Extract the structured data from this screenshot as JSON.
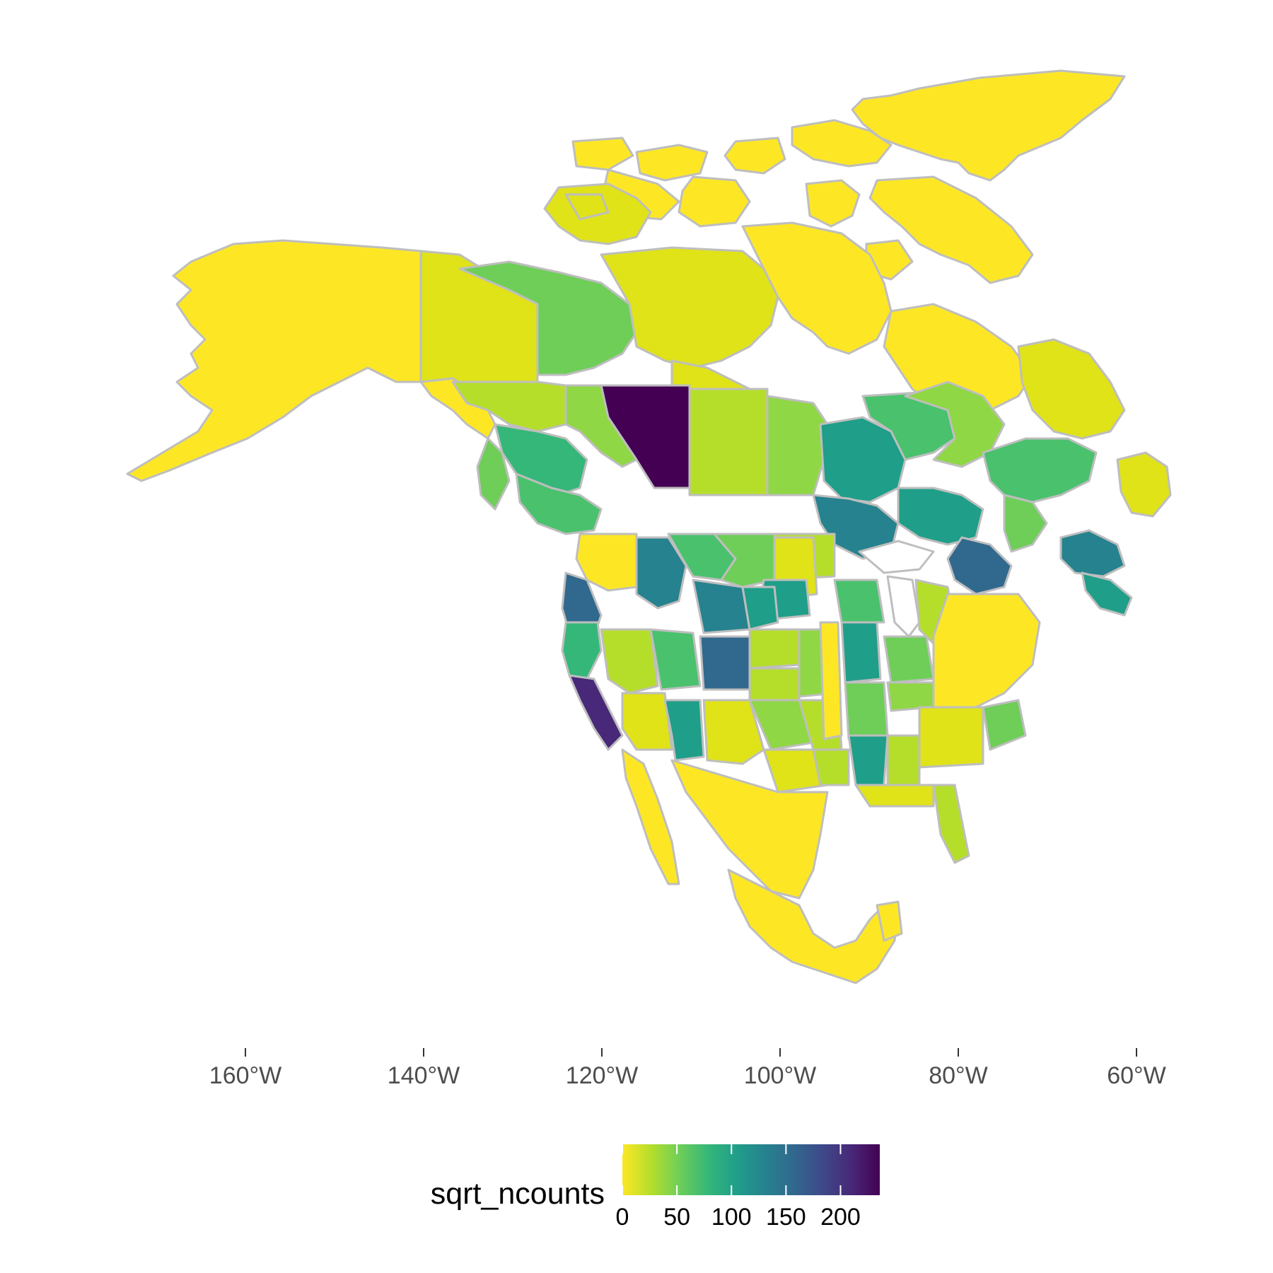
{
  "map": {
    "variable": "sqrt_ncounts",
    "region": "North America",
    "border_color": "#bebebe",
    "colormap": "viridis (reversed)"
  },
  "axis": {
    "x_ticks": [
      {
        "lon": -160,
        "label": "160°W"
      },
      {
        "lon": -140,
        "label": "140°W"
      },
      {
        "lon": -120,
        "label": "120°W"
      },
      {
        "lon": -100,
        "label": "100°W"
      },
      {
        "lon": -80,
        "label": "80°W"
      },
      {
        "lon": -60,
        "label": "60°W"
      }
    ]
  },
  "legend": {
    "title": "sqrt_ncounts",
    "range": [
      0,
      236
    ],
    "ticks": [
      0,
      50,
      100,
      150,
      200
    ],
    "tick_labels": [
      "0",
      "50",
      "100",
      "150",
      "200"
    ],
    "colors": [
      "#fde725",
      "#b5de2b",
      "#6ece58",
      "#35b779",
      "#1f9e89",
      "#26828e",
      "#31688e",
      "#3e4989",
      "#482878",
      "#440154"
    ]
  },
  "colors": {
    "zero": "#fde725",
    "low": "#dfe318",
    "low_mid": "#b5de2b",
    "mid_low": "#8fd744",
    "mid": "#6ece58",
    "mid_green": "#4ac16d",
    "teal": "#1f9e89",
    "teal_dark": "#26828e",
    "blue": "#31688e",
    "indigo": "#3e4989",
    "purple": "#482878",
    "max": "#440154"
  }
}
